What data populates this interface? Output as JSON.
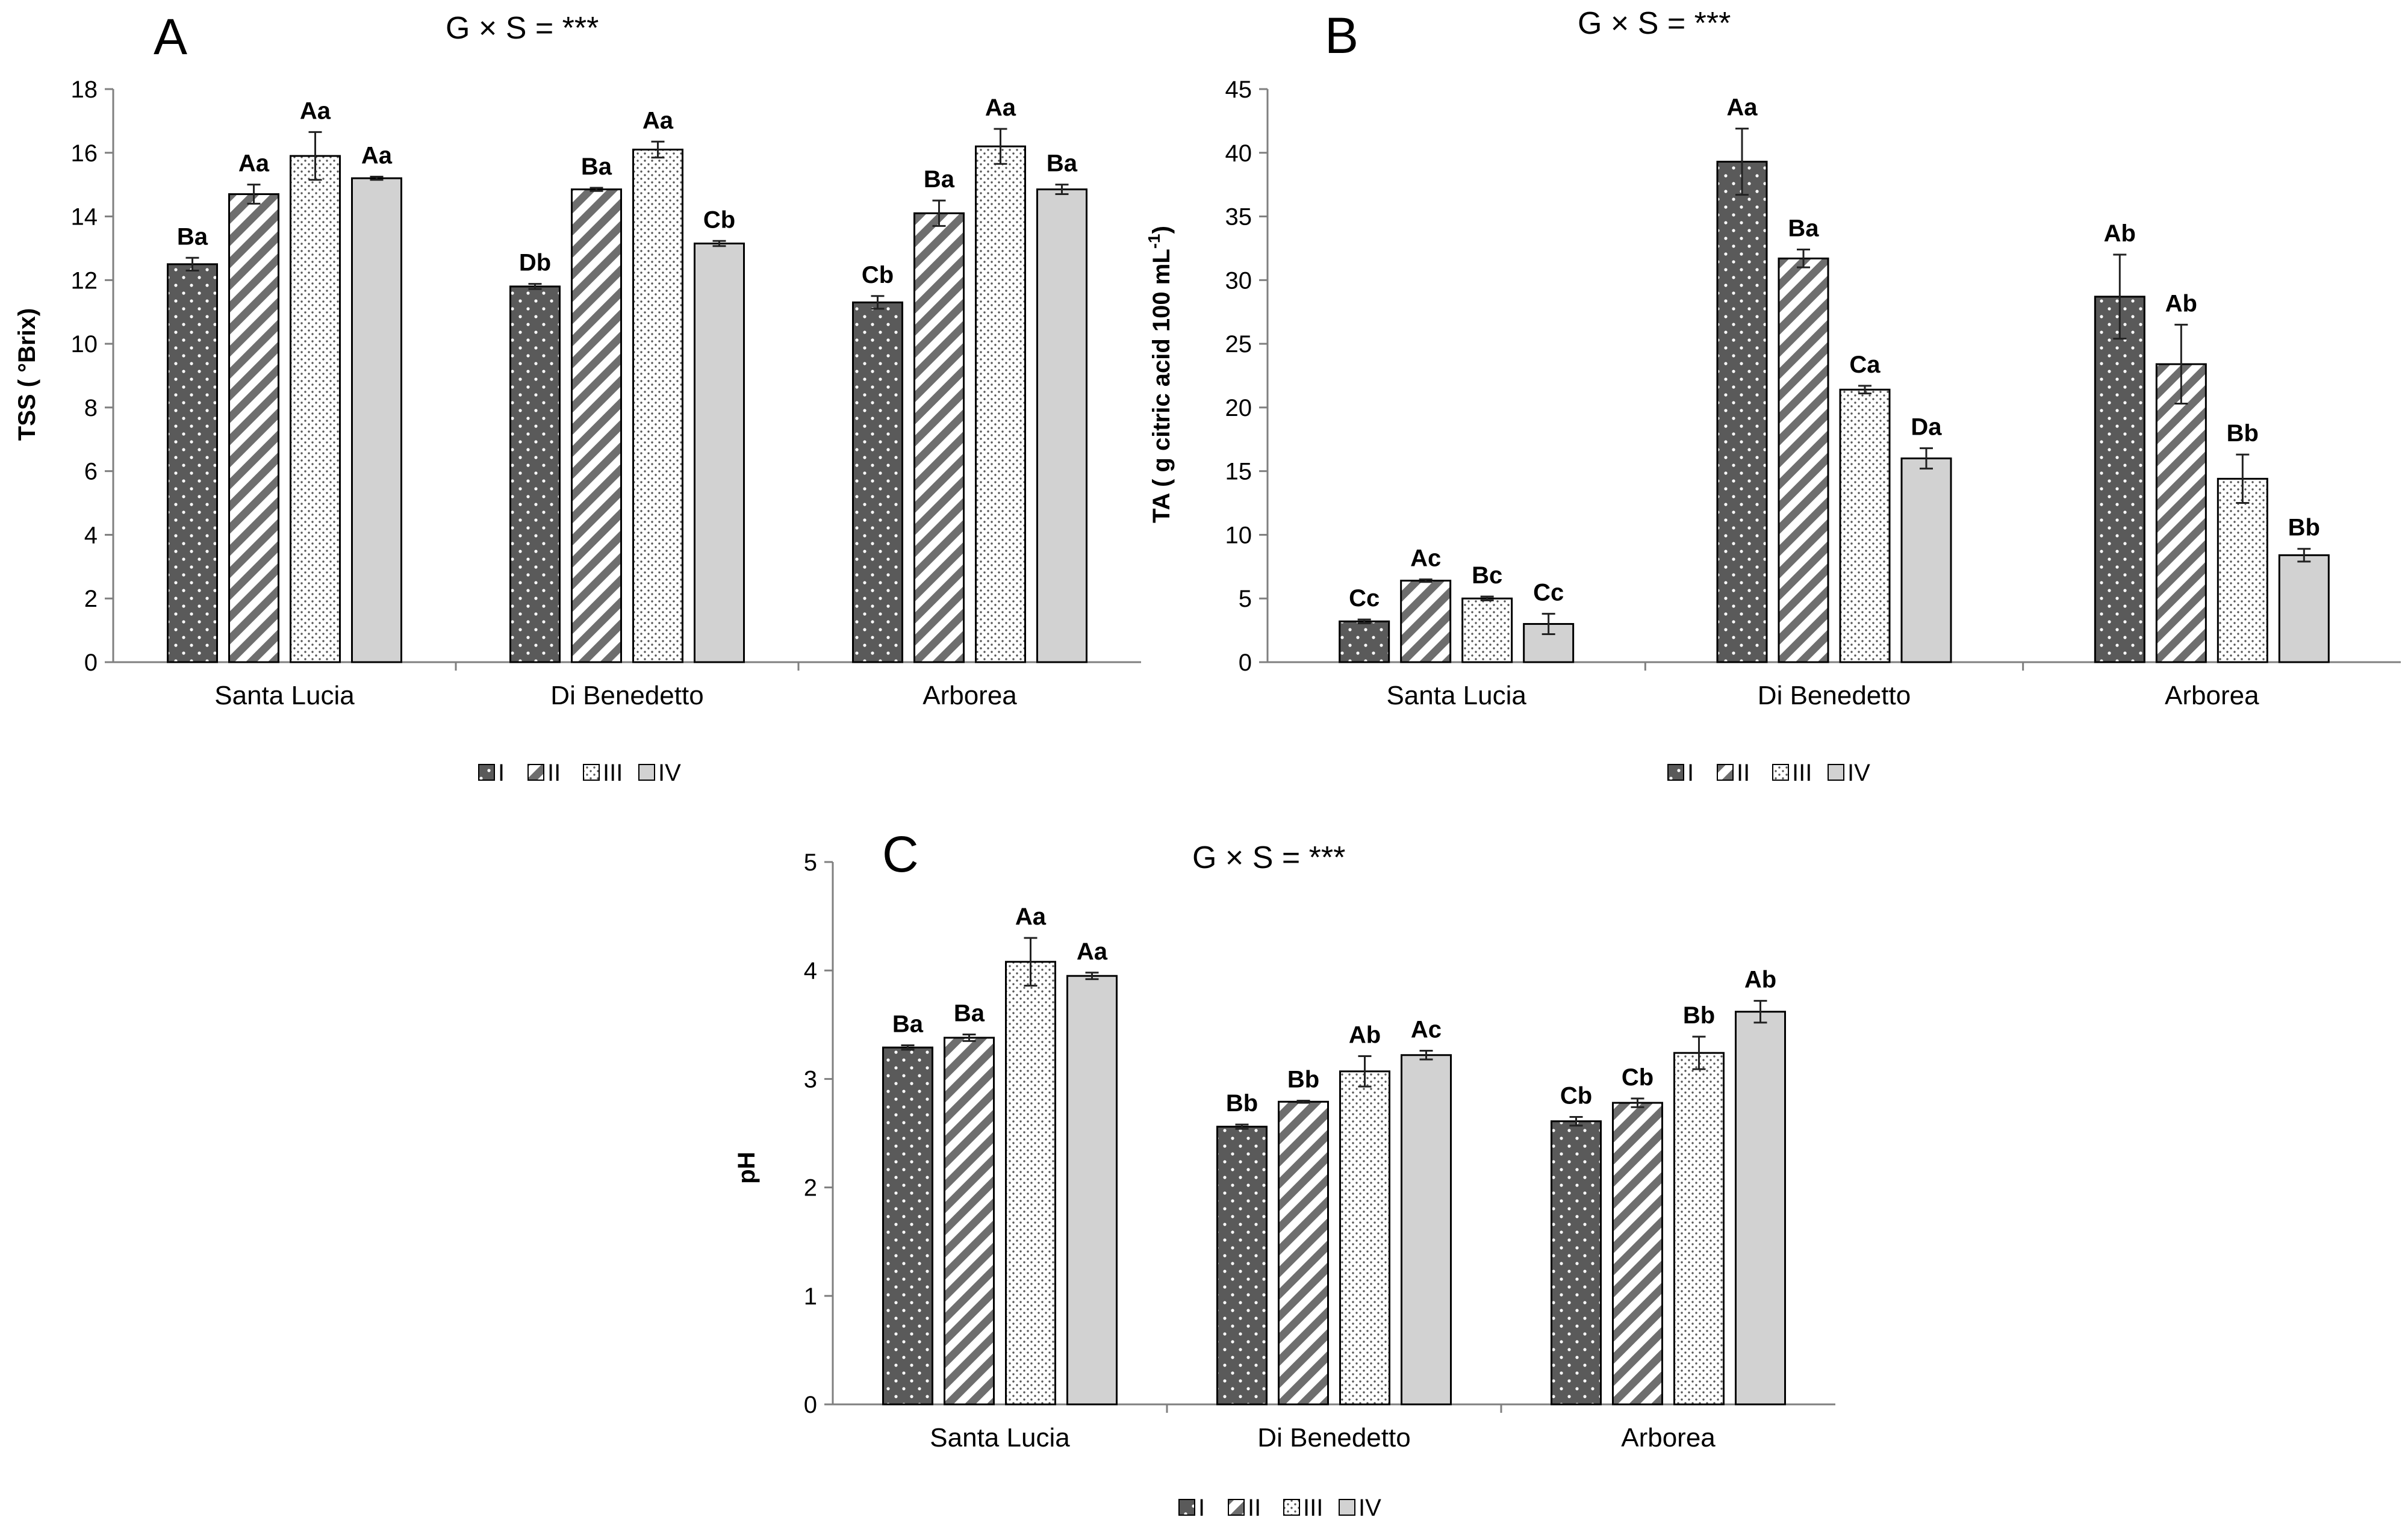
{
  "legend": {
    "labels": [
      "I",
      "II",
      "III",
      "IV"
    ],
    "patterns": [
      "dots",
      "diagonal-stripes",
      "fine-dots",
      "solid-light-gray"
    ]
  },
  "colors": {
    "bar_I": "#5a5a5a",
    "bar_II_stripe": "#6e6e6e",
    "bar_III_dot": "#555555",
    "bar_IV": "#d2d2d2",
    "axis": "#7f7f7f",
    "outline": "#000000"
  },
  "chart_data": [
    {
      "type": "bar",
      "panel": "A",
      "title": "G × S = ***",
      "xlabel": "",
      "ylabel": "TSS ( °Brix)",
      "ylim": [
        0,
        18
      ],
      "yticks": [
        0,
        2,
        4,
        6,
        8,
        10,
        12,
        14,
        16,
        18
      ],
      "grid": false,
      "legend_position": "bottom",
      "categories": [
        "Santa Lucia",
        "Di Benedetto",
        "Arborea"
      ],
      "series": [
        {
          "name": "I",
          "values": [
            12.5,
            11.8,
            11.3
          ],
          "errors": [
            0.2,
            0.08,
            0.2
          ],
          "labels": [
            "Ba",
            "Db",
            "Cb"
          ]
        },
        {
          "name": "II",
          "values": [
            14.7,
            14.85,
            14.1
          ],
          "errors": [
            0.3,
            0.05,
            0.4
          ],
          "labels": [
            "Aa",
            "Ba",
            "Ba"
          ]
        },
        {
          "name": "III",
          "values": [
            15.9,
            16.1,
            16.2
          ],
          "errors": [
            0.75,
            0.25,
            0.55
          ],
          "labels": [
            "Aa",
            "Aa",
            "Aa"
          ]
        },
        {
          "name": "IV",
          "values": [
            15.2,
            13.15,
            14.85
          ],
          "errors": [
            0.05,
            0.08,
            0.15
          ],
          "labels": [
            "Aa",
            "Cb",
            "Ba"
          ]
        }
      ]
    },
    {
      "type": "bar",
      "panel": "B",
      "title": "G × S = ***",
      "xlabel": "",
      "ylabel": "TA ( g citric acid 100 mL",
      "ylabel_sup": "-1",
      "ylabel_tail": ")",
      "ylim": [
        0,
        45
      ],
      "yticks": [
        0,
        5,
        10,
        15,
        20,
        25,
        30,
        35,
        40,
        45
      ],
      "grid": false,
      "legend_position": "bottom",
      "categories": [
        "Santa Lucia",
        "Di Benedetto",
        "Arborea"
      ],
      "series": [
        {
          "name": "I",
          "values": [
            3.2,
            39.3,
            28.7
          ],
          "errors": [
            0.15,
            2.6,
            3.3
          ],
          "labels": [
            "Cc",
            "Aa",
            "Ab"
          ]
        },
        {
          "name": "II",
          "values": [
            6.4,
            31.7,
            23.4
          ],
          "errors": [
            0.1,
            0.7,
            3.1
          ],
          "labels": [
            "Ac",
            "Ba",
            "Ab"
          ]
        },
        {
          "name": "III",
          "values": [
            5.0,
            21.4,
            14.4
          ],
          "errors": [
            0.15,
            0.3,
            1.9
          ],
          "labels": [
            "Bc",
            "Ca",
            "Bb"
          ]
        },
        {
          "name": "IV",
          "values": [
            3.0,
            16.0,
            8.4
          ],
          "errors": [
            0.8,
            0.8,
            0.5
          ],
          "labels": [
            "Cc",
            "Da",
            "Bb"
          ]
        }
      ]
    },
    {
      "type": "bar",
      "panel": "C",
      "title": "G × S = ***",
      "xlabel": "",
      "ylabel": "pH",
      "ylim": [
        0,
        5
      ],
      "yticks": [
        0,
        1,
        2,
        3,
        4,
        5
      ],
      "grid": false,
      "legend_position": "bottom",
      "categories": [
        "Santa Lucia",
        "Di Benedetto",
        "Arborea"
      ],
      "series": [
        {
          "name": "I",
          "values": [
            3.29,
            2.56,
            2.61
          ],
          "errors": [
            0.02,
            0.02,
            0.04
          ],
          "labels": [
            "Ba",
            "Bb",
            "Cb"
          ]
        },
        {
          "name": "II",
          "values": [
            3.38,
            2.79,
            2.78
          ],
          "errors": [
            0.03,
            0.01,
            0.04
          ],
          "labels": [
            "Ba",
            "Bb",
            "Cb"
          ]
        },
        {
          "name": "III",
          "values": [
            4.08,
            3.07,
            3.24
          ],
          "errors": [
            0.22,
            0.14,
            0.15
          ],
          "labels": [
            "Aa",
            "Ab",
            "Bb"
          ]
        },
        {
          "name": "IV",
          "values": [
            3.95,
            3.22,
            3.62
          ],
          "errors": [
            0.03,
            0.04,
            0.1
          ],
          "labels": [
            "Aa",
            "Ac",
            "Ab"
          ]
        }
      ]
    }
  ]
}
